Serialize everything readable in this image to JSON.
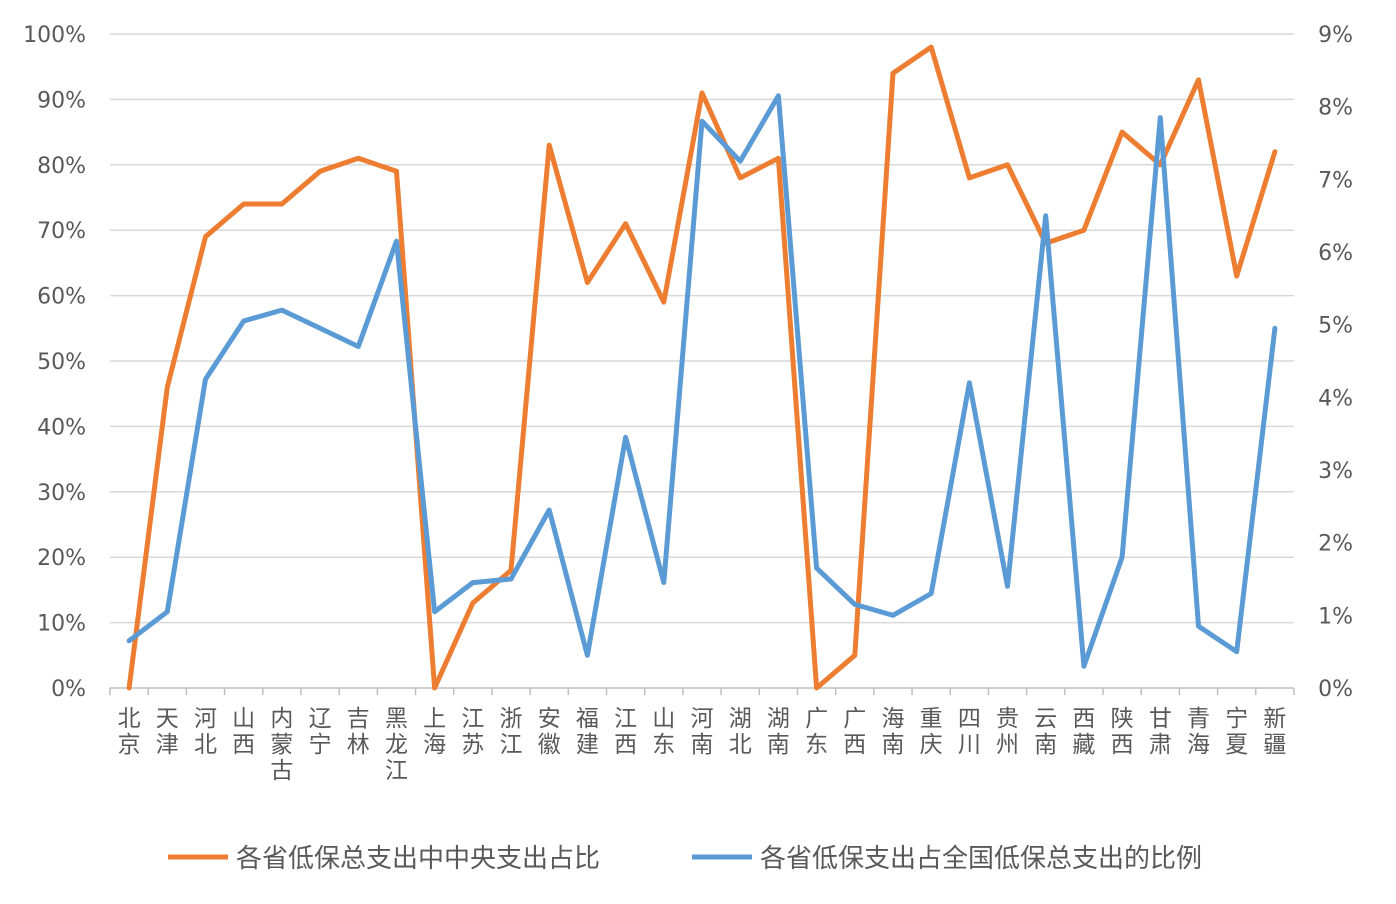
{
  "chart_data": {
    "type": "line",
    "categories": [
      "北京",
      "天津",
      "河北",
      "山西",
      "内蒙古",
      "辽宁",
      "吉林",
      "黑龙江",
      "上海",
      "江苏",
      "浙江",
      "安徽",
      "福建",
      "江西",
      "山东",
      "河南",
      "湖北",
      "湖南",
      "广东",
      "广西",
      "海南",
      "重庆",
      "四川",
      "贵州",
      "云南",
      "西藏",
      "陕西",
      "甘肃",
      "青海",
      "宁夏",
      "新疆"
    ],
    "series": [
      {
        "name": "各省低保总支出中中央支出占比",
        "axis": "left",
        "color": "#ED7D31",
        "values": [
          0,
          46,
          69,
          74,
          74,
          79,
          81,
          79,
          0,
          13,
          18,
          83,
          62,
          71,
          59,
          91,
          78,
          81,
          0,
          5,
          94,
          98,
          78,
          80,
          68,
          70,
          85,
          80,
          93,
          63,
          82
        ]
      },
      {
        "name": "各省低保支出占全国低保总支出的比例",
        "axis": "right",
        "color": "#5B9BD5",
        "values": [
          0.65,
          1.05,
          4.25,
          5.05,
          5.2,
          4.95,
          4.7,
          6.15,
          1.05,
          1.45,
          1.5,
          2.45,
          0.45,
          3.45,
          1.45,
          7.8,
          7.25,
          8.15,
          1.65,
          1.15,
          1.0,
          1.3,
          4.2,
          1.4,
          6.5,
          0.3,
          1.8,
          7.85,
          0.85,
          0.5,
          4.95
        ]
      }
    ],
    "y_left": {
      "min": 0,
      "max": 100,
      "step": 10,
      "ticks": [
        "0%",
        "10%",
        "20%",
        "30%",
        "40%",
        "50%",
        "60%",
        "70%",
        "80%",
        "90%",
        "100%"
      ]
    },
    "y_right": {
      "min": 0,
      "max": 9,
      "step": 1,
      "ticks": [
        "0%",
        "1%",
        "2%",
        "3%",
        "4%",
        "5%",
        "6%",
        "7%",
        "8%",
        "9%"
      ]
    },
    "grid": true,
    "legend_position": "bottom",
    "gridline_color": "#D9D9D9",
    "axis_color": "#BFBFBF"
  }
}
